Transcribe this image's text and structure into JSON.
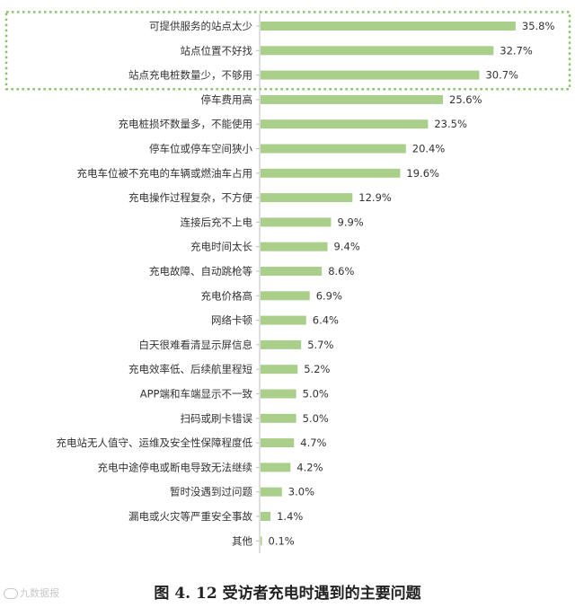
{
  "chart_data": {
    "type": "bar",
    "orientation": "horizontal",
    "categories": [
      "可提供服务的站点太少",
      "站点位置不好找",
      "站点充电桩数量少，不够用",
      "停车费用高",
      "充电桩损坏数量多，不能使用",
      "停车位或停车空间狭小",
      "充电车位被不充电的车辆或燃油车占用",
      "充电操作过程复杂，不方便",
      "连接后充不上电",
      "充电时间太长",
      "充电故障、自动跳枪等",
      "充电价格高",
      "网络卡顿",
      "白天很难看清显示屏信息",
      "充电效率低、后续航里程短",
      "APP端和车端显示不一致",
      "扫码或刷卡错误",
      "充电站无人值守、运维及安全性保障程度低",
      "充电中途停电或断电导致无法继续",
      "暂时没遇到过问题",
      "漏电或火灾等严重安全事故",
      "其他"
    ],
    "values": [
      35.8,
      32.7,
      30.7,
      25.6,
      23.5,
      20.4,
      19.6,
      12.9,
      9.9,
      9.4,
      8.6,
      6.9,
      6.4,
      5.7,
      5.2,
      5.0,
      5.0,
      4.7,
      4.2,
      3.0,
      1.4,
      0.1
    ],
    "value_labels": [
      "35.8%",
      "32.7%",
      "30.7%",
      "25.6%",
      "23.5%",
      "20.4%",
      "19.6%",
      "12.9%",
      "9.9%",
      "9.4%",
      "8.6%",
      "6.9%",
      "6.4%",
      "5.7%",
      "5.2%",
      "5.0%",
      "5.0%",
      "4.7%",
      "4.2%",
      "3.0%",
      "1.4%",
      "0.1%"
    ],
    "unit": "%",
    "highlighted_top_n": 3,
    "bar_color": "#a9cf8a",
    "highlight_border_color": "#8dc06a",
    "axis_color": "#bfbfbf",
    "grid": false,
    "legend": "none"
  },
  "caption": "图 4. 12  受访者充电时遇到的主要问题",
  "watermark": "九数据报"
}
